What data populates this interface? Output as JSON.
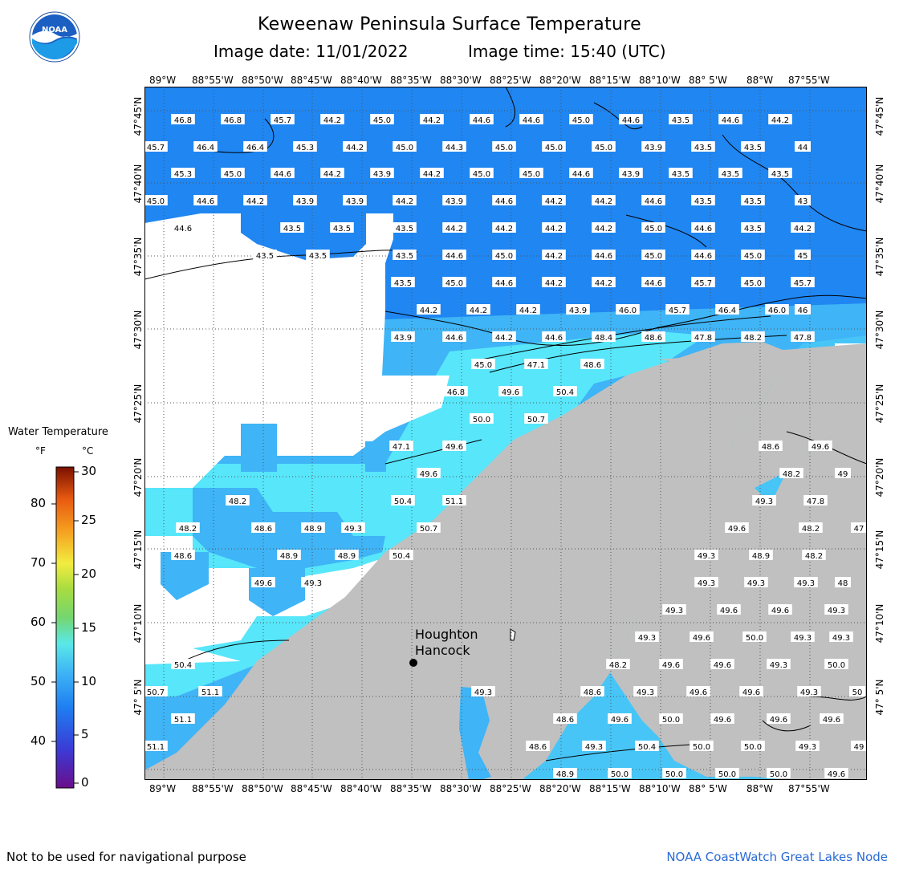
{
  "header": {
    "title": "Keweenaw Peninsula Surface Temperature",
    "image_date": "Image date: 11/01/2022",
    "image_time": "Image time: 15:40 (UTC)",
    "logo_text": "NOAA"
  },
  "map": {
    "lon_labels": [
      "89°W",
      "88°55'W",
      "88°50'W",
      "88°45'W",
      "88°40'W",
      "88°35'W",
      "88°30'W",
      "88°25'W",
      "88°20'W",
      "88°15'W",
      "88°10'W",
      "88° 5'W",
      "88°W",
      "87°55'W"
    ],
    "lat_labels": [
      "47°45'N",
      "47°40'N",
      "47°35'N",
      "47°30'N",
      "47°25'N",
      "47°20'N",
      "47°15'N",
      "47°10'N",
      "47° 5'N"
    ],
    "city_label_1": "Houghton",
    "city_label_2": "Hancock",
    "colors": {
      "land": "#c0c0c0",
      "cold_water": "#1f86f2",
      "mid_water": "#3fb4f6",
      "warm_water": "#57e6fa",
      "grid": "#555555"
    }
  },
  "legend": {
    "title": "Water Temperature",
    "unit_f": "°F",
    "unit_c": "°C",
    "f_ticks": [
      "80",
      "70",
      "60",
      "50",
      "40"
    ],
    "c_ticks": [
      "30",
      "25",
      "20",
      "15",
      "10",
      "5",
      "0"
    ]
  },
  "footer": {
    "disclaimer": "Not to be used for navigational purpose",
    "credit": "NOAA CoastWatch Great Lakes Node"
  },
  "temps": [
    [
      "46.8",
      "46.8",
      "45.7",
      "44.2",
      "45.0",
      "44.2",
      "44.6",
      "44.6",
      "45.0",
      "44.6",
      "43.5",
      "44.6",
      "44.2"
    ],
    [
      "45.7",
      "46.4",
      "46.4",
      "45.3",
      "44.2",
      "45.0",
      "44.3",
      "45.0",
      "45.0",
      "45.0",
      "43.9",
      "43.5",
      "43.5",
      "44"
    ],
    [
      "45.3",
      "45.0",
      "44.6",
      "44.2",
      "43.9",
      "44.2",
      "45.0",
      "45.0",
      "44.6",
      "43.9",
      "43.5",
      "43.5",
      "43.5"
    ],
    [
      "45.0",
      "44.6",
      "44.2",
      "43.9",
      "43.9",
      "44.2",
      "43.9",
      "44.6",
      "44.2",
      "44.2",
      "44.6",
      "43.5",
      "43.5",
      "43"
    ],
    [
      "44.6",
      "43.5",
      "43.5",
      "43.5",
      "44.2",
      "44.2",
      "44.2",
      "44.2",
      "45.0",
      "44.6",
      "43.5",
      "44.2"
    ],
    [
      "43.5",
      "43.5",
      "43.5",
      "44.6",
      "45.0",
      "44.2",
      "44.6",
      "45.0",
      "44.6",
      "45.0",
      "45"
    ],
    [
      "43.5",
      "45.0",
      "44.6",
      "44.2",
      "44.2",
      "44.6",
      "45.7",
      "45.0",
      "45.7"
    ],
    [
      "44.2",
      "44.2",
      "44.2",
      "43.9",
      "46.0",
      "45.7",
      "46.4",
      "46.0",
      "46"
    ],
    [
      "43.9",
      "44.6",
      "44.2",
      "44.6",
      "48.4",
      "48.6",
      "47.8",
      "48.2",
      "47.8"
    ],
    [
      "45.0",
      "47.1",
      "48.6"
    ],
    [
      "46.8",
      "49.6",
      "50.4"
    ],
    [
      "50.0",
      "50.7"
    ],
    [
      "47.1",
      "49.6",
      "48.6",
      "49.6"
    ],
    [
      "49.6",
      "48.2",
      "49"
    ],
    [
      "48.2",
      "50.4",
      "51.1",
      "49.3",
      "47.8"
    ],
    [
      "48.2",
      "48.6",
      "48.9",
      "49.3",
      "50.7",
      "49.6",
      "48.2",
      "47"
    ],
    [
      "48.6",
      "48.9",
      "48.9",
      "50.4",
      "49.3",
      "48.9",
      "48.2"
    ],
    [
      "49.6",
      "49.3",
      "49.3",
      "49.3",
      "49.3",
      "48"
    ],
    [
      "49.3",
      "49.6",
      "49.6",
      "49.3"
    ],
    [
      "49.3",
      "49.6",
      "50.0",
      "49.3",
      "49.3"
    ],
    [
      "50.4",
      "48.2",
      "49.6",
      "49.6",
      "49.3",
      "50.0"
    ],
    [
      "50.7",
      "51.1",
      "49.3",
      "48.6",
      "49.3",
      "49.6",
      "49.6",
      "49.3",
      "50"
    ],
    [
      "51.1",
      "48.6",
      "49.6",
      "50.0",
      "49.6",
      "49.6",
      "49.6"
    ],
    [
      "51.1",
      "48.6",
      "49.3",
      "50.4",
      "50.0",
      "50.0",
      "49.3",
      "49"
    ],
    [
      "48.9",
      "50.0",
      "50.0",
      "50.0",
      "50.0",
      "49.6"
    ]
  ]
}
